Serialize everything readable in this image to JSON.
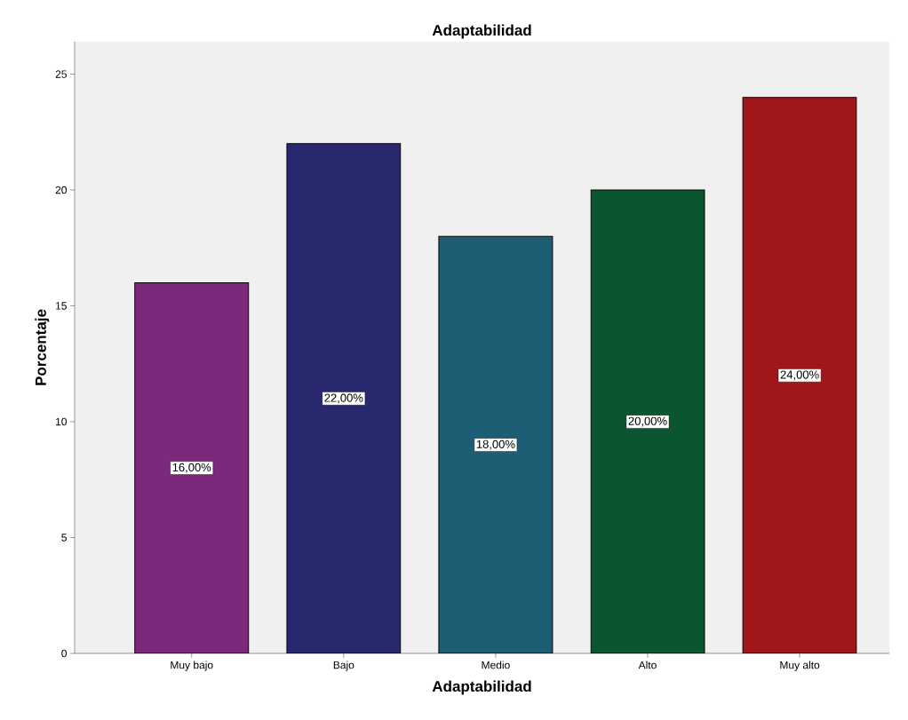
{
  "chart_data": {
    "type": "bar",
    "title": "Adaptabilidad",
    "xlabel": "Adaptabilidad",
    "ylabel": "Porcentaje",
    "categories": [
      "Muy bajo",
      "Bajo",
      "Medio",
      "Alto",
      "Muy alto"
    ],
    "values": [
      16,
      22,
      18,
      20,
      24
    ],
    "colors": [
      "#7b2a7b",
      "#28286e",
      "#1e5e74",
      "#0b5630",
      "#a0161a"
    ],
    "value_labels": [
      "16,00%",
      "22,00%",
      "18,00%",
      "20,00%",
      "24,00%"
    ],
    "ylim": [
      0,
      26.4
    ],
    "yticks": [
      0,
      5,
      10,
      15,
      20,
      25
    ],
    "grid": false
  }
}
